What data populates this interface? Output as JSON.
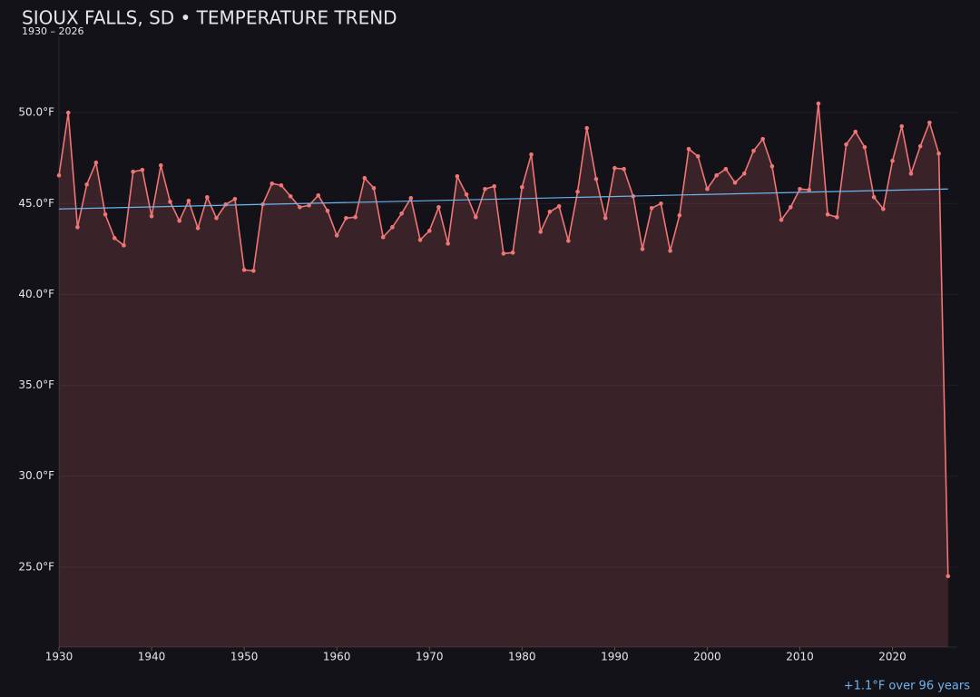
{
  "chart_data": {
    "type": "line",
    "title": "SIOUX FALLS, SD • TEMPERATURE TREND",
    "subtitle": "1930 – 2026",
    "annotation": "+1.1°F over 96 years",
    "x": [
      1930,
      1931,
      1932,
      1933,
      1934,
      1935,
      1936,
      1937,
      1938,
      1939,
      1940,
      1941,
      1942,
      1943,
      1944,
      1945,
      1946,
      1947,
      1948,
      1949,
      1950,
      1951,
      1952,
      1953,
      1954,
      1955,
      1956,
      1957,
      1958,
      1959,
      1960,
      1961,
      1962,
      1963,
      1964,
      1965,
      1966,
      1967,
      1968,
      1969,
      1970,
      1971,
      1972,
      1973,
      1974,
      1975,
      1976,
      1977,
      1978,
      1979,
      1980,
      1981,
      1982,
      1983,
      1984,
      1985,
      1986,
      1987,
      1988,
      1989,
      1990,
      1991,
      1992,
      1993,
      1994,
      1995,
      1996,
      1997,
      1998,
      1999,
      2000,
      2001,
      2002,
      2003,
      2004,
      2005,
      2006,
      2007,
      2008,
      2009,
      2010,
      2011,
      2012,
      2013,
      2014,
      2015,
      2016,
      2017,
      2018,
      2019,
      2020,
      2021,
      2022,
      2023,
      2024,
      2025,
      2026
    ],
    "series": [
      {
        "color": "#f07575",
        "values": [
          46.55,
          50.0,
          43.7,
          46.05,
          47.25,
          44.4,
          43.1,
          42.7,
          46.75,
          46.85,
          44.3,
          47.1,
          45.1,
          44.05,
          45.15,
          43.65,
          45.35,
          44.2,
          44.95,
          45.25,
          41.35,
          41.3,
          44.95,
          46.1,
          46.0,
          45.4,
          44.8,
          44.9,
          45.45,
          44.6,
          43.25,
          44.2,
          44.25,
          46.4,
          45.85,
          43.15,
          43.7,
          44.45,
          45.3,
          43.0,
          43.5,
          44.8,
          42.8,
          46.5,
          45.5,
          44.25,
          45.8,
          45.95,
          42.25,
          42.3,
          45.9,
          47.7,
          43.45,
          44.55,
          44.85,
          42.95,
          45.65,
          49.15,
          46.35,
          44.2,
          46.95,
          46.9,
          45.4,
          42.5,
          44.75,
          45.0,
          42.4,
          44.35,
          48.0,
          47.6,
          45.8,
          46.55,
          46.9,
          46.15,
          46.65,
          47.9,
          48.55,
          47.05,
          44.1,
          44.8,
          45.8,
          45.75,
          50.5,
          44.4,
          44.25,
          48.25,
          48.95,
          48.1,
          45.35,
          44.7,
          47.35,
          49.25,
          46.65,
          48.15,
          49.45,
          47.75,
          24.5
        ]
      }
    ],
    "trend": {
      "color": "#6cb4ee",
      "x": [
        1930,
        2026
      ],
      "values": [
        44.7,
        45.8
      ]
    },
    "xlim": [
      1930,
      2027
    ],
    "ylim": [
      20.6,
      54.2
    ],
    "xticks": [
      1930,
      1940,
      1950,
      1960,
      1970,
      1980,
      1990,
      2000,
      2010,
      2020
    ],
    "yticks": [
      {
        "value": 25,
        "label": "25.0°F"
      },
      {
        "value": 30,
        "label": "30.0°F"
      },
      {
        "value": 35,
        "label": "35.0°F"
      },
      {
        "value": 40,
        "label": "40.0°F"
      },
      {
        "value": 45,
        "label": "45.0°F"
      },
      {
        "value": 50,
        "label": "50.0°F"
      }
    ],
    "grid": true
  }
}
